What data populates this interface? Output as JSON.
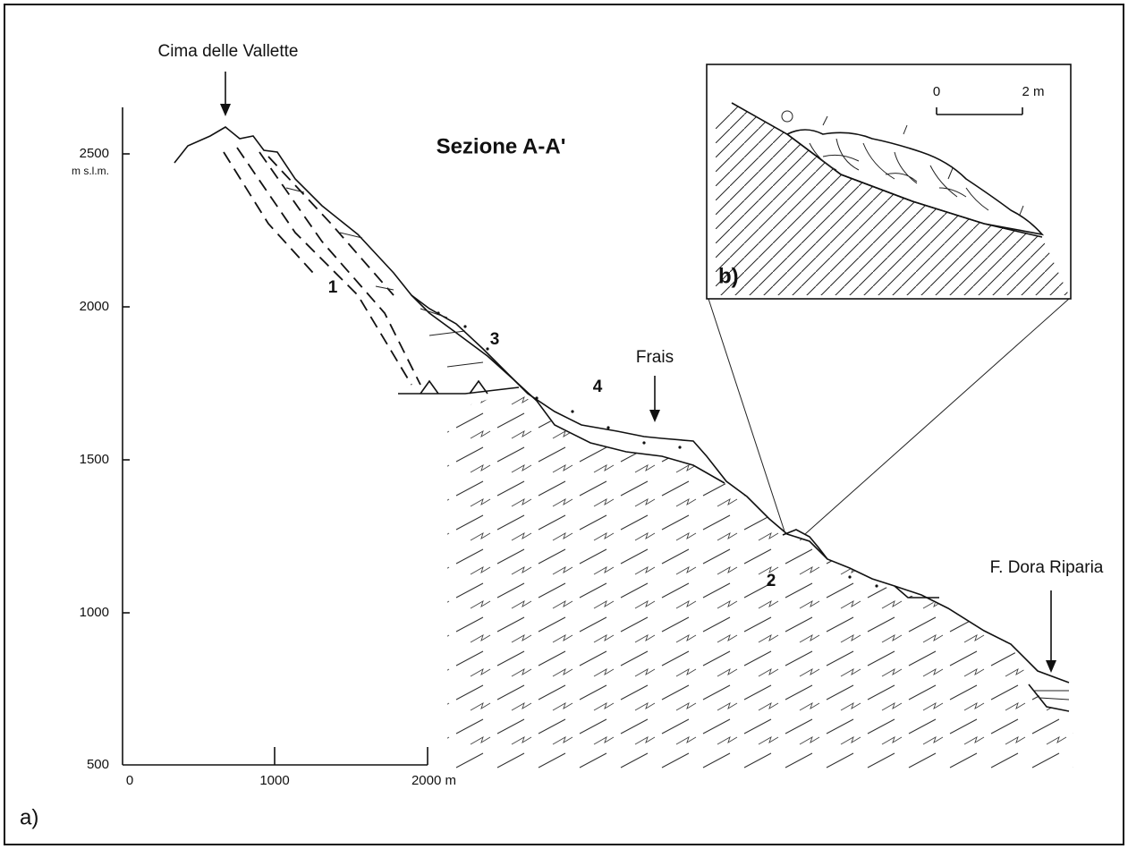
{
  "figure": {
    "panel_a": "a)",
    "panel_b": "b)",
    "section_title": "Sezione A-A'",
    "y_axis": {
      "ticks": [
        "2500",
        "2000",
        "1500",
        "1000",
        "500"
      ],
      "unit": "m s.l.m."
    },
    "x_axis": {
      "ticks": [
        "0",
        "1000",
        "2000 m"
      ]
    },
    "places": [
      "Cima delle Vallette",
      "Frais",
      "F. Dora Riparia"
    ],
    "units": [
      "1",
      "2",
      "3",
      "4"
    ],
    "inset_scale": [
      "0",
      "2 m"
    ]
  }
}
